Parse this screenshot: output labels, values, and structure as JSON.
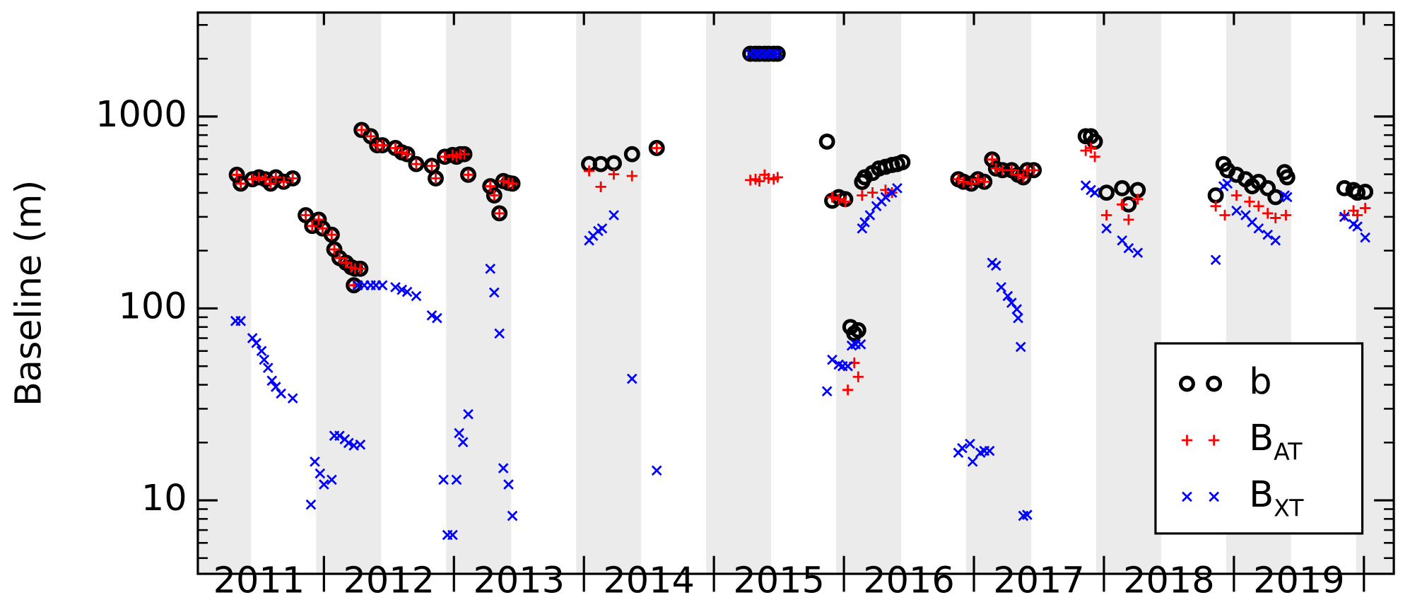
{
  "chart_data": {
    "type": "scatter",
    "ylabel": "Baseline (m)",
    "log_y": true,
    "xlim": [
      2011.03,
      2020.23
    ],
    "xticks": [
      {
        "value": 2011.5,
        "label": "2011"
      },
      {
        "value": 2012.5,
        "label": "2012"
      },
      {
        "value": 2013.5,
        "label": "2013"
      },
      {
        "value": 2014.5,
        "label": "2014"
      },
      {
        "value": 2015.5,
        "label": "2015"
      },
      {
        "value": 2016.5,
        "label": "2016"
      },
      {
        "value": 2017.5,
        "label": "2017"
      },
      {
        "value": 2018.5,
        "label": "2018"
      },
      {
        "value": 2019.5,
        "label": "2019"
      }
    ],
    "xticks_minor": [
      2012,
      2013,
      2014,
      2015,
      2016,
      2017,
      2018,
      2019,
      2020
    ],
    "ylim": [
      4.14,
      3480
    ],
    "yticks": [
      10,
      100,
      1000
    ],
    "yticks_minor": [
      5,
      6,
      7,
      8,
      9,
      20,
      30,
      40,
      50,
      60,
      70,
      80,
      90,
      200,
      300,
      400,
      500,
      600,
      700,
      800,
      900,
      2000,
      3000
    ],
    "shaded_bands": [
      [
        2010.94,
        2011.44
      ],
      [
        2011.94,
        2012.44
      ],
      [
        2012.94,
        2013.44
      ],
      [
        2013.94,
        2014.44
      ],
      [
        2014.94,
        2015.44
      ],
      [
        2015.94,
        2016.44
      ],
      [
        2016.94,
        2017.44
      ],
      [
        2017.94,
        2018.44
      ],
      [
        2018.94,
        2019.44
      ],
      [
        2019.94,
        2020.44
      ]
    ],
    "band_color": "#ebebeb",
    "legend": "lower right",
    "series": [
      {
        "name": "b",
        "color": "#000000",
        "marker": "circle",
        "x": [
          2011.33,
          2011.36,
          2011.45,
          2011.5,
          2011.55,
          2011.59,
          2011.63,
          2011.69,
          2011.76,
          2011.86,
          2011.91,
          2011.96,
          2011.99,
          2012.06,
          2012.08,
          2012.12,
          2012.17,
          2012.21,
          2012.24,
          2012.28,
          2012.23,
          2012.29,
          2012.36,
          2012.41,
          2012.45,
          2012.55,
          2012.6,
          2012.64,
          2012.71,
          2012.83,
          2012.86,
          2012.93,
          2012.99,
          2013.02,
          2013.05,
          2013.08,
          2013.11,
          2013.28,
          2013.31,
          2013.35,
          2013.38,
          2013.42,
          2013.45,
          2014.04,
          2014.13,
          2014.23,
          2014.37,
          2014.56,
          2015.28,
          2015.32,
          2015.35,
          2015.39,
          2015.42,
          2015.46,
          2015.49,
          2015.87,
          2015.91,
          2015.96,
          2016.01,
          2016.14,
          2016.16,
          2016.22,
          2016.27,
          2016.32,
          2016.37,
          2016.41,
          2016.45,
          2016.05,
          2016.08,
          2016.11,
          2016.88,
          2016.92,
          2016.98,
          2017.03,
          2017.08,
          2017.14,
          2017.17,
          2017.22,
          2017.29,
          2017.34,
          2017.38,
          2017.41,
          2017.46,
          2017.86,
          2017.9,
          2017.93,
          2018.02,
          2018.14,
          2018.19,
          2018.26,
          2018.86,
          2018.92,
          2018.95,
          2019.02,
          2019.09,
          2019.14,
          2019.19,
          2019.26,
          2019.32,
          2019.39,
          2019.41,
          2019.85,
          2019.92,
          2019.95,
          2020.01
        ],
        "values": [
          497,
          447,
          471,
          482,
          471,
          447,
          482,
          457,
          476,
          306,
          269,
          290,
          261,
          242,
          203,
          183,
          173,
          164,
          161,
          161,
          132,
          851,
          789,
          708,
          708,
          685,
          650,
          636,
          565,
          553,
          476,
          617,
          630,
          617,
          636,
          636,
          497,
          433,
          388,
          313,
          461,
          451,
          447,
          565,
          565,
          571,
          636,
          685,
          2123,
          2123,
          2123,
          2123,
          2123,
          2123,
          2123,
          740,
          364,
          380,
          371,
          456,
          482,
          508,
          536,
          547,
          559,
          565,
          578,
          80,
          74,
          77,
          471,
          457,
          447,
          471,
          457,
          597,
          536,
          525,
          525,
          497,
          482,
          525,
          525,
          789,
          789,
          740,
          401,
          423,
          348,
          414,
          388,
          565,
          525,
          497,
          471,
          433,
          456,
          423,
          380,
          513,
          482,
          423,
          414,
          401,
          405
        ]
      },
      {
        "name": "B",
        "subscript": "AT",
        "color": "#ff0000",
        "marker": "plus",
        "x": [
          2011.33,
          2011.36,
          2011.45,
          2011.5,
          2011.55,
          2011.59,
          2011.63,
          2011.69,
          2011.76,
          2011.86,
          2011.91,
          2011.96,
          2011.99,
          2012.06,
          2012.08,
          2012.12,
          2012.17,
          2012.21,
          2012.24,
          2012.28,
          2012.23,
          2012.29,
          2012.36,
          2012.41,
          2012.45,
          2012.55,
          2012.6,
          2012.64,
          2012.71,
          2012.83,
          2012.86,
          2012.93,
          2012.99,
          2013.02,
          2013.05,
          2013.08,
          2013.11,
          2013.28,
          2013.31,
          2013.35,
          2013.38,
          2013.42,
          2013.45,
          2014.04,
          2014.13,
          2014.23,
          2014.37,
          2014.56,
          2015.28,
          2015.32,
          2015.35,
          2015.39,
          2015.42,
          2015.46,
          2015.49,
          2016.03,
          2016.08,
          2016.11,
          2015.91,
          2015.96,
          2016.01,
          2016.14,
          2016.22,
          2016.32,
          2016.37,
          2016.88,
          2016.92,
          2016.98,
          2017.03,
          2017.08,
          2017.14,
          2017.17,
          2017.22,
          2017.29,
          2017.34,
          2017.38,
          2017.41,
          2017.46,
          2017.86,
          2017.9,
          2017.93,
          2018.02,
          2018.14,
          2018.19,
          2018.26,
          2018.86,
          2018.93,
          2019.02,
          2019.12,
          2019.19,
          2019.26,
          2019.32,
          2019.4,
          2019.85,
          2019.92,
          2019.95,
          2020.01
        ],
        "values": [
          497,
          447,
          471,
          482,
          471,
          447,
          482,
          457,
          476,
          306,
          269,
          290,
          261,
          242,
          203,
          183,
          173,
          164,
          161,
          161,
          132,
          851,
          789,
          708,
          708,
          685,
          650,
          636,
          565,
          553,
          476,
          617,
          630,
          617,
          636,
          636,
          497,
          433,
          388,
          313,
          461,
          451,
          447,
          520,
          430,
          500,
          490,
          685,
          466,
          471,
          460,
          497,
          476,
          471,
          482,
          37.6,
          52,
          44,
          380,
          371,
          360,
          388,
          401,
          414,
          401,
          471,
          457,
          447,
          471,
          457,
          597,
          536,
          525,
          525,
          497,
          482,
          525,
          525,
          664,
          685,
          617,
          306,
          348,
          290,
          371,
          341,
          306,
          388,
          360,
          341,
          313,
          296,
          306,
          306,
          323,
          306,
          333
        ]
      },
      {
        "name": "B",
        "subscript": "XT",
        "color": "#0000ff",
        "marker": "cross",
        "x": [
          2011.32,
          2011.36,
          2011.45,
          2011.48,
          2011.52,
          2011.54,
          2011.57,
          2011.6,
          2011.63,
          2011.67,
          2011.76,
          2011.9,
          2011.93,
          2011.97,
          2012.0,
          2012.06,
          2012.08,
          2012.12,
          2012.16,
          2012.19,
          2012.23,
          2012.28,
          2012.26,
          2012.31,
          2012.36,
          2012.4,
          2012.45,
          2012.55,
          2012.6,
          2012.64,
          2012.71,
          2012.83,
          2012.87,
          2012.92,
          2012.95,
          2012.99,
          2013.02,
          2013.04,
          2013.07,
          2013.11,
          2013.28,
          2013.31,
          2013.35,
          2013.38,
          2013.42,
          2013.45,
          2014.04,
          2014.07,
          2014.11,
          2014.14,
          2014.23,
          2014.37,
          2014.56,
          2015.28,
          2015.32,
          2015.35,
          2015.39,
          2015.42,
          2015.46,
          2015.49,
          2015.87,
          2015.91,
          2015.96,
          2015.99,
          2016.03,
          2016.06,
          2016.09,
          2016.13,
          2016.14,
          2016.16,
          2016.2,
          2016.25,
          2016.29,
          2016.32,
          2016.37,
          2016.41,
          2016.88,
          2016.91,
          2016.97,
          2016.99,
          2017.05,
          2017.08,
          2017.12,
          2017.14,
          2017.17,
          2017.21,
          2017.26,
          2017.29,
          2017.33,
          2017.34,
          2017.36,
          2017.38,
          2017.41,
          2017.86,
          2017.9,
          2017.93,
          2018.02,
          2018.14,
          2018.19,
          2018.26,
          2018.86,
          2018.92,
          2018.95,
          2019.02,
          2019.09,
          2019.14,
          2019.19,
          2019.26,
          2019.32,
          2019.39,
          2019.41,
          2019.85,
          2019.92,
          2019.95,
          2020.01
        ],
        "values": [
          86,
          86,
          70,
          66,
          60,
          54,
          49,
          42,
          39,
          36,
          34,
          9.5,
          15.9,
          13.8,
          12.1,
          12.8,
          21.7,
          21.7,
          20.8,
          19.9,
          19.3,
          19.5,
          132,
          132,
          132,
          132,
          132,
          129,
          125,
          122,
          116,
          92,
          89,
          12.8,
          6.6,
          6.6,
          12.8,
          22.4,
          20.1,
          28.1,
          161,
          121,
          74,
          14.7,
          12.1,
          8.3,
          226,
          239,
          253,
          261,
          306,
          43,
          14.3,
          2123,
          2123,
          2123,
          2123,
          2123,
          2123,
          2123,
          37,
          54,
          51,
          50,
          50,
          64,
          65,
          65,
          261,
          281,
          306,
          341,
          360,
          380,
          401,
          423,
          17.7,
          18.7,
          19.7,
          15.9,
          17.7,
          18.1,
          18.1,
          173,
          167,
          129,
          116,
          107,
          99,
          89,
          63,
          8.3,
          8.4,
          437,
          414,
          401,
          261,
          226,
          206,
          195,
          179,
          433,
          447,
          323,
          306,
          281,
          261,
          242,
          226,
          388,
          380,
          300,
          275,
          267,
          234
        ]
      }
    ]
  }
}
